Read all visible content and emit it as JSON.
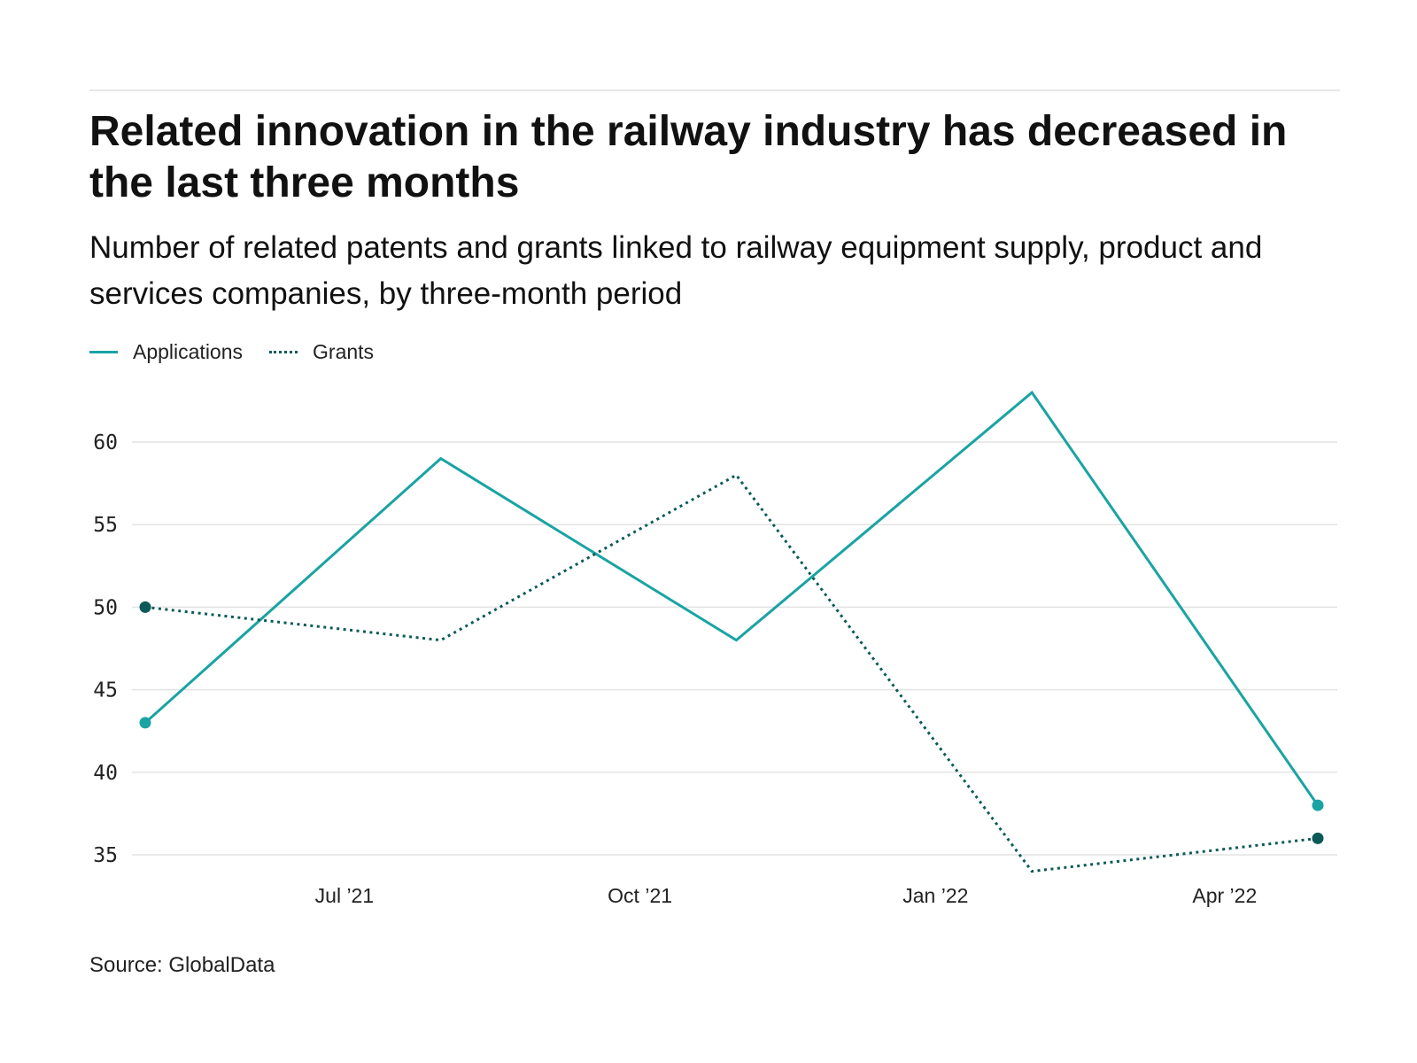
{
  "header": {
    "title": "Related innovation in the railway industry has decreased in the last three months",
    "subtitle": "Number of related patents and grants linked to railway equipment supply, product and services companies, by three-month period"
  },
  "legend": [
    {
      "label": "Applications",
      "color": "#1aa3a3",
      "style": "solid"
    },
    {
      "label": "Grants",
      "color": "#0b5a58",
      "style": "dotted"
    }
  ],
  "chart_data": {
    "type": "line",
    "x": [
      "2021-04-30",
      "2021-07-31",
      "2021-10-31",
      "2022-01-31",
      "2022-04-30"
    ],
    "x_tick_labels": [
      {
        "date": "2021-07-01",
        "label": "Jul ’21"
      },
      {
        "date": "2021-10-01",
        "label": "Oct ’21"
      },
      {
        "date": "2022-01-01",
        "label": "Jan ’22"
      },
      {
        "date": "2022-04-01",
        "label": "Apr ’22"
      }
    ],
    "y_ticks": [
      35,
      40,
      45,
      50,
      55,
      60
    ],
    "ylim": [
      34,
      63
    ],
    "grid": true,
    "legend_position": "top-left",
    "series": [
      {
        "name": "Applications",
        "color": "#1aa3a3",
        "style": "solid",
        "values": [
          43,
          59,
          48,
          63,
          38
        ]
      },
      {
        "name": "Grants",
        "color": "#0b5a58",
        "style": "dotted",
        "values": [
          50,
          48,
          58,
          34,
          36
        ]
      }
    ]
  },
  "footer": {
    "source": "Source: GlobalData"
  }
}
